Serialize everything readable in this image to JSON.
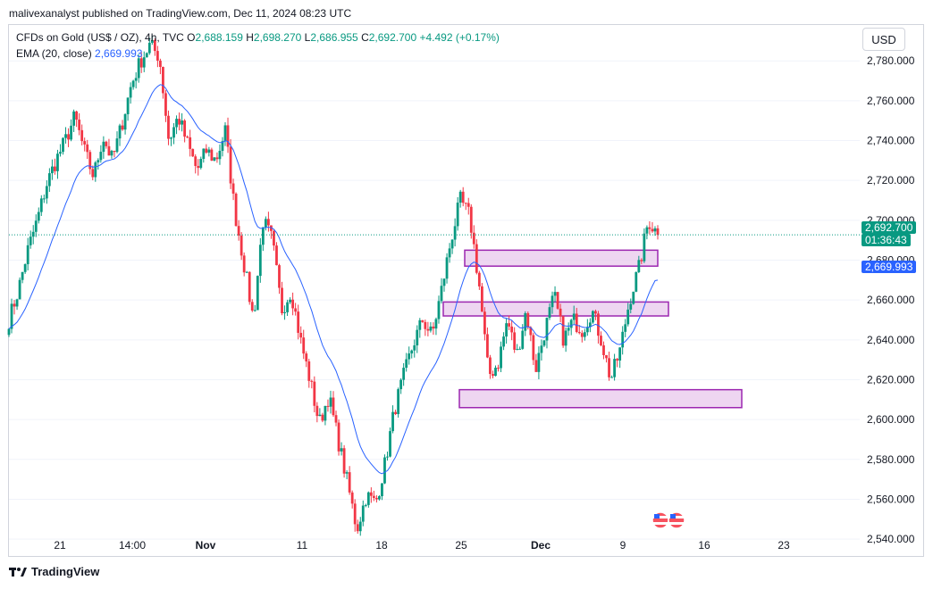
{
  "header": {
    "publisher_text": "malivexanalyst published on TradingView.com, Dec 11, 2024 08:23 UTC"
  },
  "legend": {
    "symbol": "CFDs on Gold (US$ / OZ), 4h, TVC",
    "open_label": "O",
    "open_value": "2,688.159",
    "high_label": "H",
    "high_value": "2,698.270",
    "low_label": "L",
    "low_value": "2,686.955",
    "close_label": "C",
    "close_value": "2,692.700",
    "change": "+4.492 (+0.17%)",
    "ema_label": "EMA (20, close)",
    "ema_value": "2,669.993"
  },
  "currency_button": "USD",
  "price_tag": {
    "price": "2,692.700",
    "countdown": "01:36:43",
    "ema": "2,669.993"
  },
  "footer": {
    "brand": "TradingView"
  },
  "colors": {
    "up": "#089981",
    "down": "#f23645",
    "ema": "#2962ff",
    "zone_fill": "#e8c8ec",
    "zone_stroke": "#9c27b0",
    "grid": "#f0f3fa"
  },
  "chart_data": {
    "type": "candlestick",
    "y_axis": {
      "ticks": [
        "2,540.000",
        "2,560.000",
        "2,580.000",
        "2,600.000",
        "2,620.000",
        "2,640.000",
        "2,660.000",
        "2,680.000",
        "2,700.000",
        "2,720.000",
        "2,740.000",
        "2,760.000",
        "2,780.000"
      ],
      "range": [
        2532,
        2798
      ]
    },
    "x_axis": {
      "ticks": [
        "21",
        "14:00",
        "Nov",
        "11",
        "18",
        "25",
        "Dec",
        "9",
        "16",
        "23"
      ]
    },
    "current_price": 2692.7,
    "ema_20_last": 2669.993,
    "zones": [
      {
        "from": "Nov 25",
        "to": "Dec 11",
        "low": 2677,
        "high": 2685
      },
      {
        "from": "Nov 24",
        "to": "Dec 13",
        "low": 2652,
        "high": 2659
      },
      {
        "from": "Nov 24",
        "to": "Dec 19",
        "low": 2606,
        "high": 2615
      }
    ],
    "swing_path": [
      2650,
      2665,
      2685,
      2700,
      2718,
      2730,
      2740,
      2752,
      2735,
      2722,
      2742,
      2730,
      2748,
      2768,
      2780,
      2788,
      2782,
      2740,
      2752,
      2738,
      2725,
      2735,
      2730,
      2745,
      2705,
      2678,
      2650,
      2700,
      2690,
      2655,
      2665,
      2640,
      2620,
      2598,
      2612,
      2590,
      2568,
      2545,
      2562,
      2558,
      2578,
      2605,
      2622,
      2638,
      2650,
      2642,
      2665,
      2690,
      2710,
      2702,
      2668,
      2622,
      2628,
      2650,
      2632,
      2655,
      2625,
      2645,
      2662,
      2640,
      2650,
      2645,
      2655,
      2640,
      2620,
      2635,
      2660,
      2676,
      2700,
      2693
    ]
  }
}
